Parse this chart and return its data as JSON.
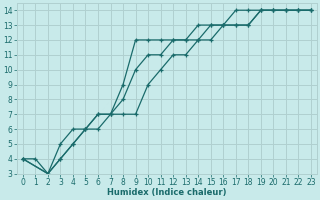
{
  "background_color": "#c8eaea",
  "grid_color": "#b0d0d0",
  "line_color": "#1a6b6b",
  "xlabel": "Humidex (Indice chaleur)",
  "xlim": [
    -0.5,
    23.5
  ],
  "ylim": [
    3,
    14.5
  ],
  "xticks": [
    0,
    1,
    2,
    3,
    4,
    5,
    6,
    7,
    8,
    9,
    10,
    11,
    12,
    13,
    14,
    15,
    16,
    17,
    18,
    19,
    20,
    21,
    22,
    23
  ],
  "yticks": [
    3,
    4,
    5,
    6,
    7,
    8,
    9,
    10,
    11,
    12,
    13,
    14
  ],
  "line1_x": [
    0,
    1,
    2,
    3,
    4,
    5,
    6,
    7,
    8,
    9,
    10,
    11,
    12,
    13,
    14,
    15,
    16,
    17,
    18,
    19,
    20,
    21,
    22,
    23
  ],
  "line1_y": [
    4,
    4,
    3,
    5,
    6,
    6,
    7,
    7,
    9,
    12,
    12,
    12,
    12,
    12,
    13,
    13,
    13,
    14,
    14,
    14,
    14,
    14,
    14,
    14
  ],
  "line2_x": [
    0,
    2,
    3,
    4,
    5,
    6,
    7,
    8,
    9,
    10,
    11,
    12,
    13,
    14,
    15,
    16,
    17,
    18,
    19,
    20,
    21,
    22,
    23
  ],
  "line2_y": [
    4,
    3,
    4,
    5,
    6,
    7,
    7,
    8,
    10,
    11,
    11,
    12,
    12,
    12,
    13,
    13,
    13,
    13,
    14,
    14,
    14,
    14,
    14
  ],
  "line3_x": [
    0,
    2,
    3,
    4,
    5,
    6,
    7,
    8,
    9,
    10,
    11,
    12,
    13,
    14,
    15,
    16,
    17,
    18,
    19,
    20,
    21,
    22,
    23
  ],
  "line3_y": [
    4,
    3,
    4,
    5,
    6,
    6,
    7,
    7,
    7,
    9,
    10,
    11,
    11,
    12,
    12,
    13,
    13,
    13,
    14,
    14,
    14,
    14,
    14
  ],
  "marker_size": 2.5,
  "line_width": 0.9,
  "label_fontsize": 5.5,
  "xlabel_fontsize": 6.0
}
